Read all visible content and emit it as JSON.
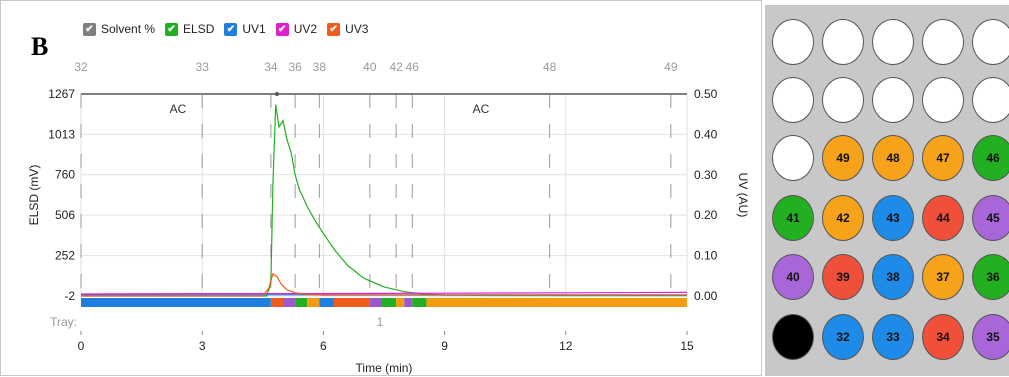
{
  "panel_label": "B",
  "legend": [
    {
      "label": "Solvent %",
      "color": "#7f7f7f",
      "check": "✔"
    },
    {
      "label": "ELSD",
      "color": "#22b022",
      "check": "✔"
    },
    {
      "label": "UV1",
      "color": "#1f7fe0",
      "check": "✔"
    },
    {
      "label": "UV2",
      "color": "#e020d0",
      "check": "✔"
    },
    {
      "label": "UV3",
      "color": "#f05a1a",
      "check": "✔"
    }
  ],
  "chart_data": {
    "type": "line",
    "xlabel": "Time (min)",
    "ylabel_left": "ELSD (mV)",
    "ylabel_right": "UV (AU)",
    "xlim": [
      0,
      15
    ],
    "ylim_left": [
      -2,
      1267
    ],
    "ylim_right": [
      0,
      0.5
    ],
    "x_ticks": [
      "0",
      "3",
      "6",
      "9",
      "12",
      "15"
    ],
    "y_left_ticks": [
      "1267",
      "1013",
      "760",
      "506",
      "252",
      "-2"
    ],
    "y_left_values": [
      1267,
      1013,
      760,
      506,
      252,
      -2
    ],
    "y_right_ticks": [
      "0.50",
      "0.40",
      "0.30",
      "0.20",
      "0.10",
      "0.00"
    ],
    "y_right_values": [
      0.5,
      0.4,
      0.3,
      0.2,
      0.1,
      0.0
    ],
    "fraction_ticks": [
      {
        "label": "32",
        "x": 0.0
      },
      {
        "label": "33",
        "x": 3.0
      },
      {
        "label": "34",
        "x": 4.7
      },
      {
        "label": "36",
        "x": 5.3
      },
      {
        "label": "38",
        "x": 5.9
      },
      {
        "label": "40",
        "x": 7.15
      },
      {
        "label": "42",
        "x": 7.8
      },
      {
        "label": "46",
        "x": 8.2
      },
      {
        "label": "48",
        "x": 11.6
      },
      {
        "label": "49",
        "x": 14.6
      }
    ],
    "region_labels": [
      {
        "label": "AC",
        "x": 2.4
      },
      {
        "label": "AC",
        "x": 9.9
      }
    ],
    "tray_label": "Tray:",
    "tray_number": {
      "label": "1",
      "x": 7.4
    },
    "solvent_percent": {
      "x": [
        0,
        15
      ],
      "y": [
        0.5,
        0.5
      ]
    },
    "series": [
      {
        "name": "ELSD",
        "axis": "left",
        "color": "#22b022",
        "x": [
          0,
          4.6,
          4.7,
          4.75,
          4.82,
          4.9,
          5.0,
          5.1,
          5.2,
          5.3,
          5.4,
          5.6,
          5.8,
          6.0,
          6.3,
          6.6,
          7.0,
          7.5,
          8.0,
          8.5,
          9.0,
          10,
          12,
          15
        ],
        "y": [
          -2,
          -2,
          80,
          700,
          1200,
          1060,
          1100,
          980,
          900,
          760,
          670,
          560,
          470,
          390,
          280,
          190,
          110,
          55,
          25,
          10,
          4,
          1,
          0,
          0
        ]
      },
      {
        "name": "UV1",
        "axis": "right",
        "color": "#1f7fe0",
        "x": [
          0,
          15
        ],
        "y": [
          0.003,
          0.003
        ]
      },
      {
        "name": "UV2",
        "axis": "right",
        "color": "#e020d0",
        "x": [
          0,
          3,
          6,
          9,
          12,
          15
        ],
        "y": [
          0.005,
          0.006,
          0.006,
          0.007,
          0.008,
          0.009
        ]
      },
      {
        "name": "UV3",
        "axis": "right",
        "color": "#f05a1a",
        "x": [
          0,
          4.5,
          4.65,
          4.75,
          4.85,
          4.95,
          5.1,
          5.3,
          5.6,
          6.0,
          15
        ],
        "y": [
          0.0,
          0.0,
          0.02,
          0.055,
          0.048,
          0.03,
          0.015,
          0.008,
          0.004,
          0.002,
          0.002
        ]
      }
    ],
    "fraction_bar": [
      {
        "from": 0,
        "to": 4.7,
        "color": "#1f7fe0"
      },
      {
        "from": 4.7,
        "to": 5.0,
        "color": "#f05a1a"
      },
      {
        "from": 5.0,
        "to": 5.3,
        "color": "#9b59d0"
      },
      {
        "from": 5.3,
        "to": 5.6,
        "color": "#22b022"
      },
      {
        "from": 5.6,
        "to": 5.9,
        "color": "#f39c12"
      },
      {
        "from": 5.9,
        "to": 6.25,
        "color": "#1f7fe0"
      },
      {
        "from": 6.25,
        "to": 7.15,
        "color": "#f05a1a"
      },
      {
        "from": 7.15,
        "to": 7.45,
        "color": "#9b59d0"
      },
      {
        "from": 7.45,
        "to": 7.8,
        "color": "#22b022"
      },
      {
        "from": 7.8,
        "to": 8.0,
        "color": "#f39c12"
      },
      {
        "from": 8.0,
        "to": 8.2,
        "color": "#9b59d0"
      },
      {
        "from": 8.2,
        "to": 8.55,
        "color": "#22b022"
      },
      {
        "from": 8.55,
        "to": 15,
        "color": "#f39c12"
      }
    ]
  },
  "plate": {
    "rows": [
      [
        {
          "label": "",
          "color": "#ffffff"
        },
        {
          "label": "",
          "color": "#ffffff"
        },
        {
          "label": "",
          "color": "#ffffff"
        },
        {
          "label": "",
          "color": "#ffffff"
        },
        {
          "label": "",
          "color": "#ffffff"
        }
      ],
      [
        {
          "label": "",
          "color": "#ffffff"
        },
        {
          "label": "",
          "color": "#ffffff"
        },
        {
          "label": "",
          "color": "#ffffff"
        },
        {
          "label": "",
          "color": "#ffffff"
        },
        {
          "label": "",
          "color": "#ffffff"
        }
      ],
      [
        {
          "label": "",
          "color": "#ffffff"
        },
        {
          "label": "49",
          "color": "#f7a21b"
        },
        {
          "label": "48",
          "color": "#f7a21b"
        },
        {
          "label": "47",
          "color": "#f7a21b"
        },
        {
          "label": "46",
          "color": "#22b022"
        }
      ],
      [
        {
          "label": "41",
          "color": "#22b022"
        },
        {
          "label": "42",
          "color": "#f7a21b"
        },
        {
          "label": "43",
          "color": "#1f8be8"
        },
        {
          "label": "44",
          "color": "#f0503a"
        },
        {
          "label": "45",
          "color": "#a866d8"
        }
      ],
      [
        {
          "label": "40",
          "color": "#a866d8"
        },
        {
          "label": "39",
          "color": "#f0503a"
        },
        {
          "label": "38",
          "color": "#1f8be8"
        },
        {
          "label": "37",
          "color": "#f7a21b"
        },
        {
          "label": "36",
          "color": "#22b022"
        }
      ],
      [
        {
          "label": "",
          "color": "#000000"
        },
        {
          "label": "32",
          "color": "#1f8be8"
        },
        {
          "label": "33",
          "color": "#1f8be8"
        },
        {
          "label": "34",
          "color": "#f0503a"
        },
        {
          "label": "35",
          "color": "#a866d8"
        }
      ]
    ]
  }
}
